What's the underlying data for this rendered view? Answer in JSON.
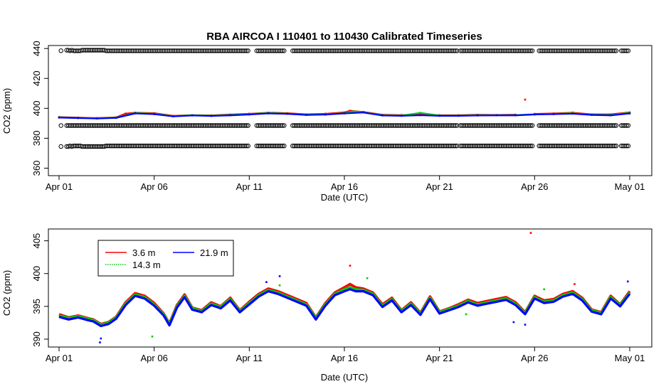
{
  "chart_data": [
    {
      "type": "scatter",
      "title": "RBA   AIRCOA  I    110401  to  110430   Calibrated Timeseries",
      "xlabel": "Date (UTC)",
      "ylabel": "CO2 (ppm)",
      "xlim": [
        "2011-04-01",
        "2011-05-01"
      ],
      "ylim": [
        355,
        442
      ],
      "x_ticks": [
        "Apr 01",
        "Apr 06",
        "Apr 11",
        "Apr 16",
        "Apr 21",
        "Apr 26",
        "May 01"
      ],
      "y_ticks": [
        360,
        380,
        400,
        420,
        440
      ],
      "reference_gas_levels_ppm": [
        374.5,
        388.5,
        438.5
      ],
      "reference_marker": "open-circle",
      "series": [
        {
          "color": "#ff0000",
          "day_offsets": [
            0.0,
            1.0,
            2.0,
            3.0,
            3.5,
            4.0,
            5.0,
            6.0,
            7.0,
            8.0,
            9.0,
            10.0,
            11.0,
            12.0,
            13.0,
            14.0,
            15.0,
            15.3,
            16.0,
            17.0,
            18.0,
            19.0,
            20.0,
            21.0,
            22.0,
            23.0,
            24.0,
            24.5,
            25.0,
            26.0,
            27.0,
            28.0,
            29.0,
            30.0
          ],
          "values": [
            394.2,
            393.8,
            393.5,
            394.0,
            396.5,
            397.1,
            396.8,
            395.0,
            395.5,
            395.3,
            395.9,
            396.4,
            397.1,
            396.8,
            396.0,
            396.4,
            397.3,
            398.4,
            397.6,
            395.7,
            395.5,
            396.0,
            395.4,
            395.4,
            395.7,
            395.6,
            395.8,
            405.8,
            396.3,
            396.6,
            397.1,
            396.0,
            396.0,
            397.3
          ]
        },
        {
          "color": "#00cc00",
          "day_offsets": [
            0.0,
            1.0,
            2.0,
            3.0,
            4.0,
            5.0,
            6.0,
            7.0,
            8.0,
            9.0,
            10.0,
            11.0,
            12.0,
            13.0,
            14.0,
            15.0,
            15.5,
            16.0,
            17.0,
            18.0,
            19.0,
            20.0,
            21.0,
            22.0,
            23.0,
            24.0,
            25.0,
            26.0,
            27.0,
            28.0,
            29.0,
            30.0
          ],
          "values": [
            394.0,
            393.6,
            393.4,
            393.8,
            396.9,
            396.4,
            394.8,
            395.4,
            395.1,
            395.6,
            396.2,
            396.9,
            396.5,
            395.8,
            396.0,
            396.8,
            398.0,
            397.4,
            395.4,
            395.2,
            397.0,
            395.2,
            395.2,
            395.4,
            395.4,
            395.5,
            396.1,
            396.3,
            396.7,
            395.8,
            395.6,
            397.0
          ]
        },
        {
          "color": "#0000ff",
          "day_offsets": [
            0.0,
            1.0,
            2.0,
            3.0,
            4.0,
            5.0,
            6.0,
            7.0,
            8.0,
            9.0,
            10.0,
            11.0,
            12.0,
            13.0,
            14.0,
            15.0,
            16.0,
            17.0,
            18.0,
            19.0,
            20.0,
            21.0,
            22.0,
            23.0,
            24.0,
            25.0,
            26.0,
            27.0,
            28.0,
            29.0,
            30.0
          ],
          "values": [
            393.8,
            393.5,
            393.2,
            393.6,
            396.6,
            396.1,
            394.6,
            395.2,
            394.9,
            395.3,
            395.9,
            396.6,
            396.3,
            395.6,
            395.8,
            396.6,
            397.2,
            395.2,
            395.0,
            395.4,
            395.0,
            395.0,
            395.2,
            395.3,
            395.3,
            395.9,
            396.1,
            396.4,
            395.6,
            395.3,
            396.6
          ]
        }
      ]
    },
    {
      "type": "line",
      "title": "",
      "xlabel": "Date (UTC)",
      "ylabel": "CO2 (ppm)",
      "xlim": [
        "2011-04-01",
        "2011-05-01"
      ],
      "ylim": [
        388.8,
        406.8
      ],
      "x_ticks": [
        "Apr 01",
        "Apr 06",
        "Apr 11",
        "Apr 16",
        "Apr 21",
        "Apr 26",
        "May 01"
      ],
      "y_ticks": [
        390,
        395,
        400,
        405
      ],
      "legend": {
        "placement": "top-left",
        "entries": [
          {
            "label": "3.6 m",
            "color": "#ff0000"
          },
          {
            "label": "21.9 m",
            "color": "#0000ff"
          },
          {
            "label": "14.3 m",
            "color": "#00cc00"
          }
        ]
      },
      "series": [
        {
          "name": "3.6 m",
          "color": "#ff0000",
          "day_offsets": [
            0.0,
            0.5,
            1.0,
            1.5,
            1.8,
            2.2,
            2.6,
            3.0,
            3.5,
            4.0,
            4.5,
            5.0,
            5.5,
            5.8,
            6.2,
            6.6,
            7.0,
            7.5,
            8.0,
            8.5,
            9.0,
            9.5,
            10.0,
            10.5,
            11.0,
            11.5,
            12.0,
            12.5,
            13.0,
            13.5,
            14.0,
            14.5,
            15.0,
            15.3,
            15.6,
            16.0,
            16.5,
            17.0,
            17.5,
            18.0,
            18.5,
            19.0,
            19.5,
            20.0,
            20.5,
            21.0,
            21.5,
            22.0,
            22.5,
            23.0,
            23.5,
            24.0,
            24.5,
            25.0,
            25.5,
            26.0,
            26.5,
            27.0,
            27.5,
            28.0,
            28.5,
            29.0,
            29.5,
            30.0
          ],
          "values": [
            393.8,
            393.3,
            393.6,
            393.2,
            393.0,
            392.3,
            392.6,
            393.4,
            395.6,
            397.0,
            396.6,
            395.5,
            393.9,
            392.4,
            395.2,
            396.8,
            394.8,
            394.4,
            395.6,
            395.0,
            396.3,
            394.4,
            395.7,
            396.9,
            397.7,
            397.3,
            396.7,
            396.1,
            395.5,
            393.3,
            395.5,
            397.1,
            397.9,
            398.4,
            397.9,
            397.7,
            397.1,
            395.3,
            396.3,
            394.4,
            395.6,
            394.0,
            396.5,
            394.2,
            394.7,
            395.3,
            396.0,
            395.5,
            395.8,
            396.1,
            396.4,
            395.6,
            394.1,
            396.6,
            395.9,
            396.1,
            396.9,
            397.3,
            396.3,
            394.5,
            394.1,
            396.6,
            395.3,
            397.3
          ]
        },
        {
          "name": "14.3 m",
          "color": "#00cc00",
          "day_offsets": [
            0.0,
            0.5,
            1.0,
            1.5,
            1.8,
            2.2,
            2.6,
            3.0,
            3.5,
            4.0,
            4.5,
            5.0,
            5.5,
            5.8,
            6.2,
            6.6,
            7.0,
            7.5,
            8.0,
            8.5,
            9.0,
            9.5,
            10.0,
            10.5,
            11.0,
            11.5,
            12.0,
            12.5,
            13.0,
            13.5,
            14.0,
            14.5,
            15.0,
            15.3,
            15.6,
            16.0,
            16.5,
            17.0,
            17.5,
            18.0,
            18.5,
            19.0,
            19.5,
            20.0,
            20.5,
            21.0,
            21.5,
            22.0,
            22.5,
            23.0,
            23.5,
            24.0,
            24.5,
            25.0,
            25.5,
            26.0,
            26.5,
            27.0,
            27.5,
            28.0,
            28.5,
            29.0,
            29.5,
            30.0
          ],
          "values": [
            393.6,
            393.2,
            393.5,
            393.1,
            392.9,
            392.2,
            392.5,
            393.3,
            395.4,
            396.8,
            396.4,
            395.3,
            393.8,
            392.3,
            395.0,
            396.6,
            394.7,
            394.3,
            395.4,
            394.9,
            396.1,
            394.3,
            395.5,
            396.7,
            397.5,
            397.1,
            396.5,
            395.9,
            395.3,
            393.2,
            395.3,
            396.9,
            397.6,
            397.9,
            397.6,
            397.5,
            396.9,
            395.1,
            396.1,
            394.3,
            395.4,
            393.9,
            396.3,
            394.1,
            394.6,
            395.1,
            395.8,
            395.3,
            395.6,
            395.9,
            396.2,
            395.4,
            394.0,
            396.4,
            395.7,
            395.9,
            396.7,
            397.1,
            396.1,
            394.4,
            394.0,
            396.4,
            395.2,
            397.1
          ]
        },
        {
          "name": "21.9 m",
          "color": "#0000ff",
          "day_offsets": [
            0.0,
            0.5,
            1.0,
            1.5,
            1.8,
            2.2,
            2.6,
            3.0,
            3.5,
            4.0,
            4.5,
            5.0,
            5.5,
            5.8,
            6.2,
            6.6,
            7.0,
            7.5,
            8.0,
            8.5,
            9.0,
            9.5,
            10.0,
            10.5,
            11.0,
            11.5,
            12.0,
            12.5,
            13.0,
            13.5,
            14.0,
            14.5,
            15.0,
            15.3,
            15.6,
            16.0,
            16.5,
            17.0,
            17.5,
            18.0,
            18.5,
            19.0,
            19.5,
            20.0,
            20.5,
            21.0,
            21.5,
            22.0,
            22.5,
            23.0,
            23.5,
            24.0,
            24.5,
            25.0,
            25.5,
            26.0,
            26.5,
            27.0,
            27.5,
            28.0,
            28.5,
            29.0,
            29.5,
            30.0
          ],
          "values": [
            393.4,
            393.0,
            393.3,
            392.9,
            392.7,
            392.0,
            392.3,
            393.1,
            395.2,
            396.6,
            396.2,
            395.1,
            393.6,
            392.1,
            394.8,
            396.4,
            394.5,
            394.1,
            395.2,
            394.7,
            395.9,
            394.1,
            395.3,
            396.5,
            397.3,
            396.9,
            396.3,
            395.7,
            395.1,
            393.0,
            395.1,
            396.7,
            397.3,
            397.6,
            397.3,
            397.3,
            396.7,
            394.9,
            395.9,
            394.1,
            395.2,
            393.7,
            396.1,
            393.9,
            394.4,
            394.9,
            395.6,
            395.1,
            395.4,
            395.7,
            396.0,
            395.2,
            393.8,
            396.2,
            395.5,
            395.7,
            396.5,
            396.9,
            395.9,
            394.2,
            393.8,
            396.2,
            395.0,
            396.9
          ]
        }
      ]
    }
  ]
}
